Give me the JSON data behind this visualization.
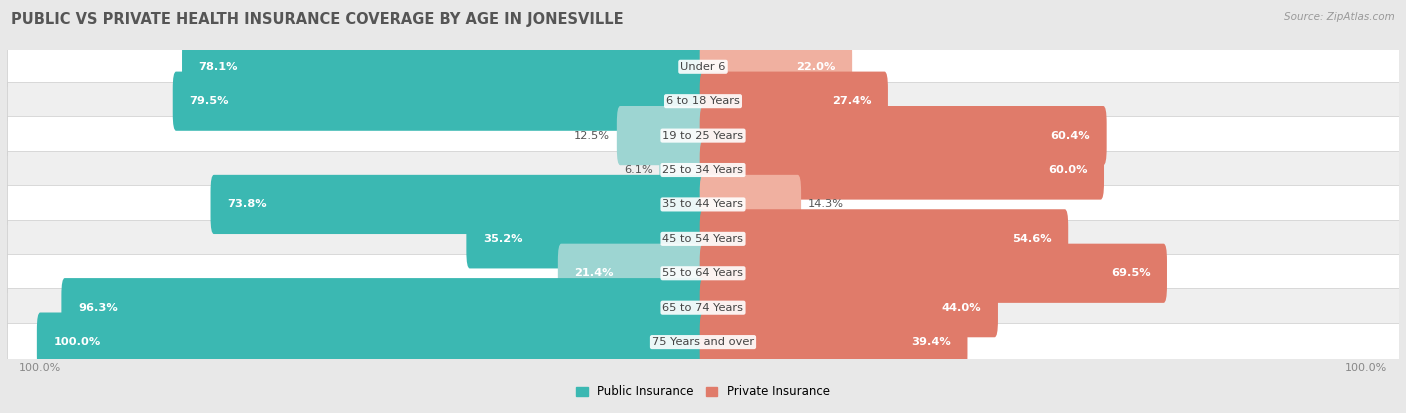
{
  "title": "PUBLIC VS PRIVATE HEALTH INSURANCE COVERAGE BY AGE IN JONESVILLE",
  "source": "Source: ZipAtlas.com",
  "categories": [
    "Under 6",
    "6 to 18 Years",
    "19 to 25 Years",
    "25 to 34 Years",
    "35 to 44 Years",
    "45 to 54 Years",
    "55 to 64 Years",
    "65 to 74 Years",
    "75 Years and over"
  ],
  "public_values": [
    78.1,
    79.5,
    12.5,
    6.1,
    73.8,
    35.2,
    21.4,
    96.3,
    100.0
  ],
  "private_values": [
    22.0,
    27.4,
    60.4,
    60.0,
    14.3,
    54.6,
    69.5,
    44.0,
    39.4
  ],
  "public_color": "#3bb8b2",
  "private_color": "#e07b6a",
  "public_color_light": "#9dd5d2",
  "private_color_light": "#f0b0a0",
  "row_color_odd": "#ffffff",
  "row_color_even": "#efefef",
  "background_color": "#e8e8e8",
  "title_fontsize": 10.5,
  "label_fontsize": 8.2,
  "cat_fontsize": 8.2,
  "tick_fontsize": 8,
  "legend_fontsize": 8.5,
  "bar_height": 0.72,
  "max_val": 100.0
}
